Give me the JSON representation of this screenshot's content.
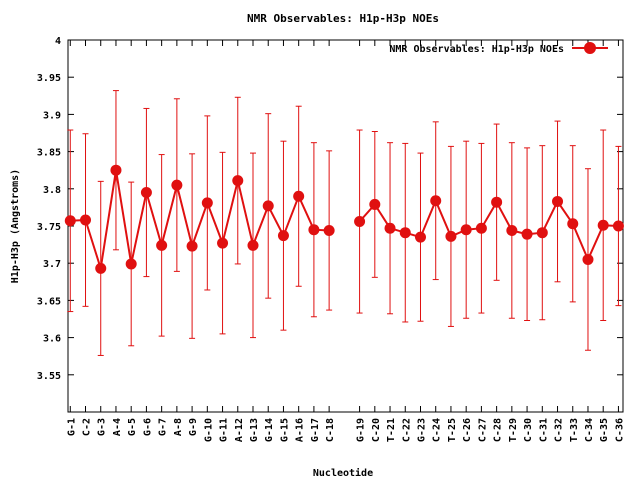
{
  "chart_data": {
    "type": "line",
    "title": "NMR Observables: H1p-H3p NOEs",
    "xlabel": "Nucleotide",
    "ylabel": "H1p-H3p (Angstroms)",
    "ylim": [
      3.5,
      4.0
    ],
    "yticks": [
      "3.55",
      "3.6",
      "3.65",
      "3.7",
      "3.75",
      "3.8",
      "3.85",
      "3.9",
      "3.95",
      "4"
    ],
    "legend_position": "top-right",
    "grid": false,
    "series_color": "#e01010",
    "series": [
      {
        "name": "NMR Observables: H1p-H3p NOEs",
        "segments": [
          {
            "x": [
              1,
              2,
              3,
              4,
              5,
              6,
              7,
              8,
              9,
              10,
              11,
              12,
              13,
              14,
              15,
              16,
              17,
              18
            ],
            "categories": [
              "G-1",
              "C-2",
              "G-3",
              "A-4",
              "G-5",
              "G-6",
              "G-7",
              "A-8",
              "G-9",
              "G-10",
              "G-11",
              "A-12",
              "G-13",
              "G-14",
              "G-15",
              "A-16",
              "G-17",
              "C-18"
            ],
            "y": [
              3.757,
              3.758,
              3.693,
              3.825,
              3.699,
              3.795,
              3.724,
              3.805,
              3.723,
              3.781,
              3.727,
              3.811,
              3.724,
              3.777,
              3.737,
              3.79,
              3.745,
              3.744
            ],
            "err": [
              0.122,
              0.116,
              0.117,
              0.107,
              0.11,
              0.113,
              0.122,
              0.116,
              0.124,
              0.117,
              0.122,
              0.112,
              0.124,
              0.124,
              0.127,
              0.121,
              0.117,
              0.107
            ]
          },
          {
            "x": [
              20,
              21,
              22,
              23,
              24,
              25,
              26,
              27,
              28,
              29,
              30,
              31,
              32,
              33,
              34,
              35,
              36,
              37
            ],
            "categories": [
              "G-19",
              "C-20",
              "T-21",
              "C-22",
              "G-23",
              "C-24",
              "T-25",
              "C-26",
              "C-27",
              "C-28",
              "T-29",
              "C-30",
              "C-31",
              "C-32",
              "T-33",
              "C-34",
              "G-35",
              "C-36"
            ],
            "y": [
              3.756,
              3.779,
              3.747,
              3.741,
              3.735,
              3.784,
              3.736,
              3.745,
              3.747,
              3.782,
              3.744,
              3.739,
              3.741,
              3.783,
              3.753,
              3.705,
              3.751,
              3.75
            ],
            "err": [
              0.123,
              0.098,
              0.115,
              0.12,
              0.113,
              0.106,
              0.121,
              0.119,
              0.114,
              0.105,
              0.118,
              0.116,
              0.117,
              0.108,
              0.105,
              0.122,
              0.128,
              0.107
            ]
          }
        ]
      }
    ]
  }
}
